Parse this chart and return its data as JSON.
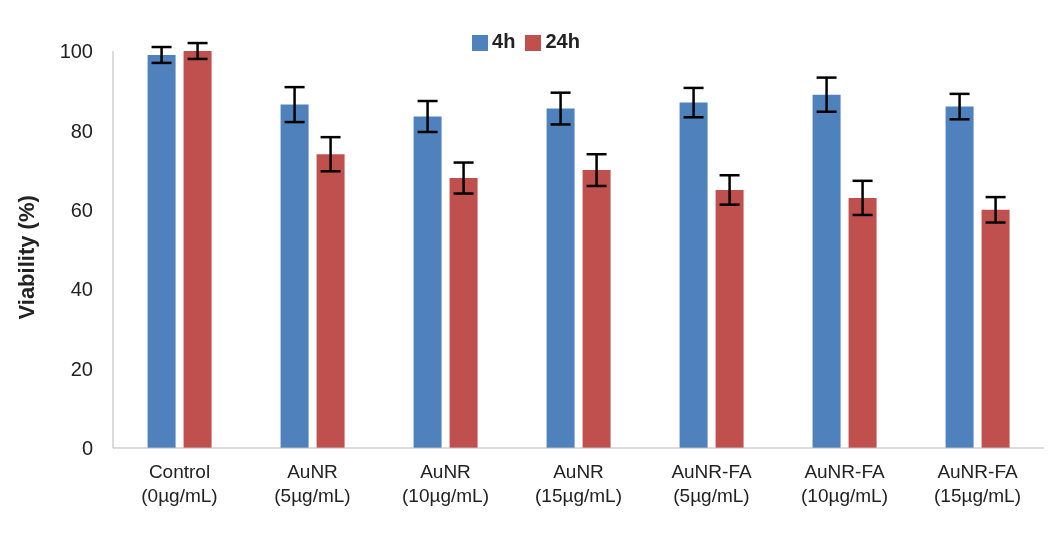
{
  "chart_data": {
    "type": "bar",
    "ylabel": "Viability (%)",
    "categories": [
      "Control\n(0µg/mL)",
      "AuNR\n(5µg/mL)",
      "AuNR\n(10µg/mL)",
      "AuNR\n(15µg/mL)",
      "AuNR-FA\n(5µg/mL)",
      "AuNR-FA\n(10µg/mL)",
      "AuNR-FA\n(15µg/mL)"
    ],
    "series": [
      {
        "name": "4h",
        "color": "#4f81bd",
        "values": [
          99,
          86.5,
          83.5,
          85.5,
          87,
          89,
          86
        ],
        "errors": [
          2,
          4.4,
          3.9,
          4,
          3.7,
          4.3,
          3.2
        ]
      },
      {
        "name": "24h",
        "color": "#c0504d",
        "values": [
          100,
          74,
          68,
          70,
          65,
          63,
          60
        ],
        "errors": [
          2,
          4.3,
          3.9,
          4,
          3.7,
          4.3,
          3.2
        ]
      }
    ],
    "ylim": [
      0,
      100
    ],
    "yticks": [
      0,
      20,
      40,
      60,
      80,
      100
    ],
    "legend": "top"
  }
}
